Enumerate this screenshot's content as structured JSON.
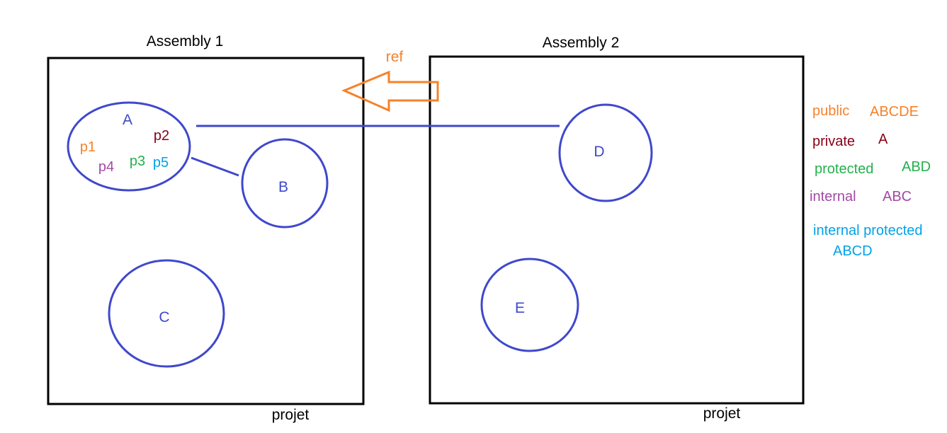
{
  "colors": {
    "node": "#3f48cc",
    "frame": "#000000",
    "ref": "#f5822a",
    "public": "#f5822a",
    "private": "#880015",
    "protected": "#22b14c",
    "internal": "#a349a4",
    "internal_protected": "#00a2e8"
  },
  "assemblies": [
    {
      "title": "Assembly 1",
      "footer": "projet"
    },
    {
      "title": "Assembly 2",
      "footer": "projet"
    }
  ],
  "ref_arrow": {
    "label": "ref"
  },
  "nodes": {
    "a": "A",
    "b": "B",
    "c": "C",
    "d": "D",
    "e": "E"
  },
  "members": {
    "p1": "p1",
    "p2": "p2",
    "p3": "p3",
    "p4": "p4",
    "p5": "p5"
  },
  "legend": {
    "public": {
      "modifier": "public",
      "scope": "ABCDE"
    },
    "private": {
      "modifier": "private",
      "scope": "A"
    },
    "protected": {
      "modifier": "protected",
      "scope": "ABD"
    },
    "internal": {
      "modifier": "internal",
      "scope": "ABC"
    },
    "internal_protected": {
      "modifier": "internal protected",
      "scope": "ABCD"
    }
  }
}
